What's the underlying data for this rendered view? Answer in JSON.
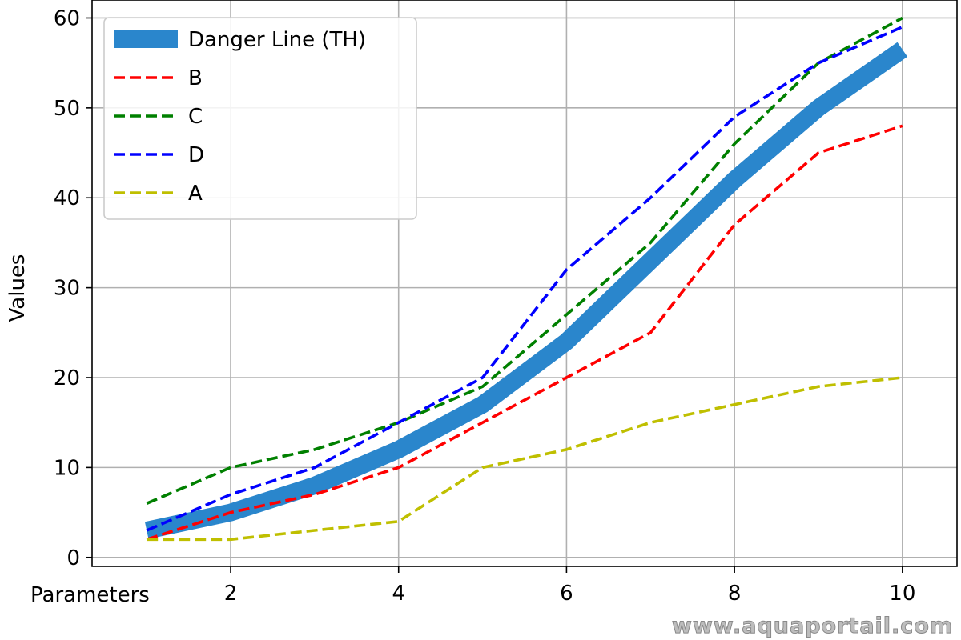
{
  "chart_data": {
    "type": "line",
    "xlabel": "Parameters",
    "ylabel": "Values",
    "xlim": [
      0.35,
      10.65
    ],
    "ylim": [
      -1,
      62
    ],
    "xticks": [
      2,
      4,
      6,
      8,
      10
    ],
    "yticks": [
      0,
      10,
      20,
      30,
      40,
      50,
      60
    ],
    "grid": true,
    "legend_position": "top-left",
    "x": [
      1,
      2,
      3,
      4,
      5,
      6,
      7,
      8,
      9,
      10
    ],
    "series": [
      {
        "name": "Danger Line (TH)",
        "style": "solid-thick",
        "color": "#2a86cc",
        "values": [
          3,
          5,
          8,
          12,
          17,
          24,
          33,
          42,
          50,
          56.5
        ]
      },
      {
        "name": "B",
        "style": "dashed",
        "color": "#ff0000",
        "values": [
          2,
          5,
          7,
          10,
          15,
          20,
          25,
          37,
          45,
          48
        ]
      },
      {
        "name": "C",
        "style": "dashed",
        "color": "#008000",
        "values": [
          6,
          10,
          12,
          15,
          19,
          27,
          35,
          46,
          55,
          60
        ]
      },
      {
        "name": "D",
        "style": "dashed",
        "color": "#0000ff",
        "values": [
          3,
          7,
          10,
          15,
          20,
          32,
          40,
          49,
          55,
          59
        ]
      },
      {
        "name": "A",
        "style": "dashed",
        "color": "#bfbf00",
        "values": [
          2,
          2,
          3,
          4,
          10,
          12,
          15,
          17,
          19,
          20
        ]
      }
    ]
  },
  "watermark": "www.aquaportail.com"
}
